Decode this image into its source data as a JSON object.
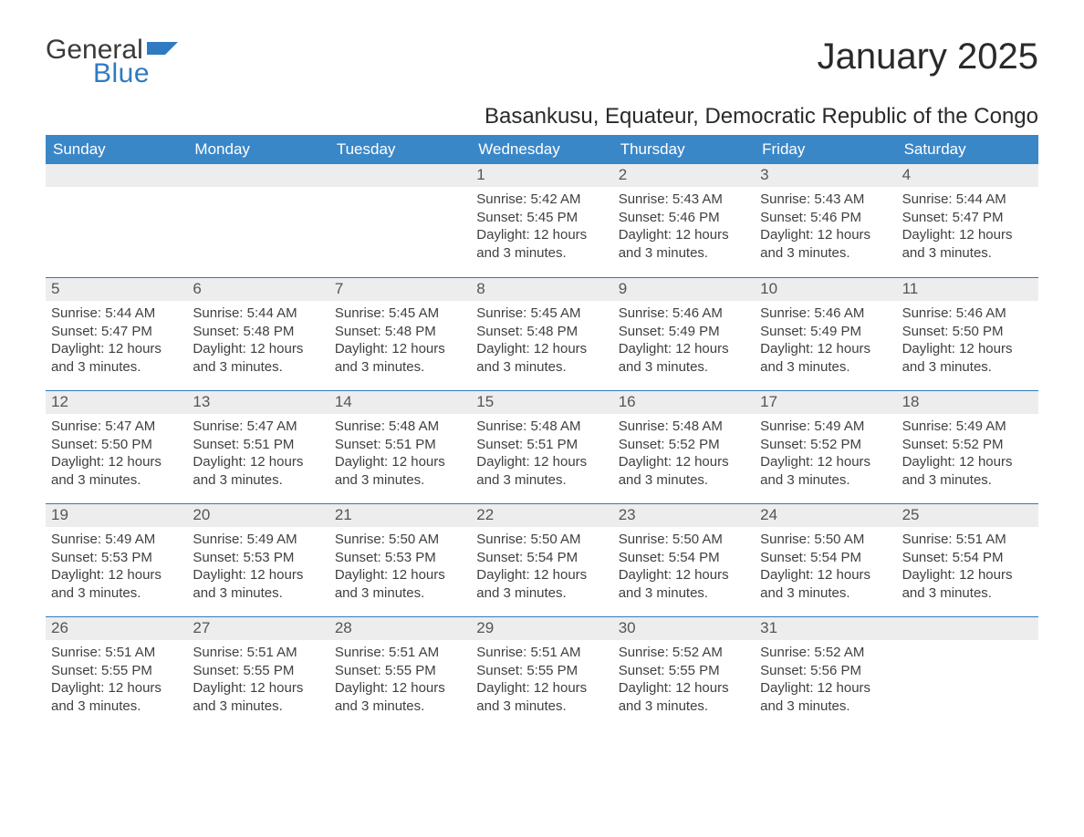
{
  "brand": {
    "word1": "General",
    "word2": "Blue",
    "color_text": "#3a3a3a",
    "color_accent": "#2f7ac0"
  },
  "title": "January 2025",
  "subtitle": "Basankusu, Equateur, Democratic Republic of the Congo",
  "colors": {
    "header_bg": "#3a87c8",
    "header_text": "#ffffff",
    "divider": "#2f7ac0",
    "daynum_bg": "#ededed",
    "daynum_text": "#555555",
    "body_text": "#404040",
    "page_bg": "#ffffff"
  },
  "typography": {
    "title_fontsize": 40,
    "subtitle_fontsize": 24,
    "dow_fontsize": 17,
    "daynum_fontsize": 17,
    "body_fontsize": 15,
    "font_family": "Arial"
  },
  "calendar": {
    "type": "month-grid",
    "columns": 7,
    "rows": 5,
    "day_headers": [
      "Sunday",
      "Monday",
      "Tuesday",
      "Wednesday",
      "Thursday",
      "Friday",
      "Saturday"
    ],
    "sunrise_prefix": "Sunrise: ",
    "sunset_prefix": "Sunset: ",
    "daylight_prefix": "Daylight: ",
    "daylight_value": "12 hours and 3 minutes.",
    "weeks": [
      [
        {
          "day": null
        },
        {
          "day": null
        },
        {
          "day": null
        },
        {
          "day": 1,
          "sunrise": "5:42 AM",
          "sunset": "5:45 PM"
        },
        {
          "day": 2,
          "sunrise": "5:43 AM",
          "sunset": "5:46 PM"
        },
        {
          "day": 3,
          "sunrise": "5:43 AM",
          "sunset": "5:46 PM"
        },
        {
          "day": 4,
          "sunrise": "5:44 AM",
          "sunset": "5:47 PM"
        }
      ],
      [
        {
          "day": 5,
          "sunrise": "5:44 AM",
          "sunset": "5:47 PM"
        },
        {
          "day": 6,
          "sunrise": "5:44 AM",
          "sunset": "5:48 PM"
        },
        {
          "day": 7,
          "sunrise": "5:45 AM",
          "sunset": "5:48 PM"
        },
        {
          "day": 8,
          "sunrise": "5:45 AM",
          "sunset": "5:48 PM"
        },
        {
          "day": 9,
          "sunrise": "5:46 AM",
          "sunset": "5:49 PM"
        },
        {
          "day": 10,
          "sunrise": "5:46 AM",
          "sunset": "5:49 PM"
        },
        {
          "day": 11,
          "sunrise": "5:46 AM",
          "sunset": "5:50 PM"
        }
      ],
      [
        {
          "day": 12,
          "sunrise": "5:47 AM",
          "sunset": "5:50 PM"
        },
        {
          "day": 13,
          "sunrise": "5:47 AM",
          "sunset": "5:51 PM"
        },
        {
          "day": 14,
          "sunrise": "5:48 AM",
          "sunset": "5:51 PM"
        },
        {
          "day": 15,
          "sunrise": "5:48 AM",
          "sunset": "5:51 PM"
        },
        {
          "day": 16,
          "sunrise": "5:48 AM",
          "sunset": "5:52 PM"
        },
        {
          "day": 17,
          "sunrise": "5:49 AM",
          "sunset": "5:52 PM"
        },
        {
          "day": 18,
          "sunrise": "5:49 AM",
          "sunset": "5:52 PM"
        }
      ],
      [
        {
          "day": 19,
          "sunrise": "5:49 AM",
          "sunset": "5:53 PM"
        },
        {
          "day": 20,
          "sunrise": "5:49 AM",
          "sunset": "5:53 PM"
        },
        {
          "day": 21,
          "sunrise": "5:50 AM",
          "sunset": "5:53 PM"
        },
        {
          "day": 22,
          "sunrise": "5:50 AM",
          "sunset": "5:54 PM"
        },
        {
          "day": 23,
          "sunrise": "5:50 AM",
          "sunset": "5:54 PM"
        },
        {
          "day": 24,
          "sunrise": "5:50 AM",
          "sunset": "5:54 PM"
        },
        {
          "day": 25,
          "sunrise": "5:51 AM",
          "sunset": "5:54 PM"
        }
      ],
      [
        {
          "day": 26,
          "sunrise": "5:51 AM",
          "sunset": "5:55 PM"
        },
        {
          "day": 27,
          "sunrise": "5:51 AM",
          "sunset": "5:55 PM"
        },
        {
          "day": 28,
          "sunrise": "5:51 AM",
          "sunset": "5:55 PM"
        },
        {
          "day": 29,
          "sunrise": "5:51 AM",
          "sunset": "5:55 PM"
        },
        {
          "day": 30,
          "sunrise": "5:52 AM",
          "sunset": "5:55 PM"
        },
        {
          "day": 31,
          "sunrise": "5:52 AM",
          "sunset": "5:56 PM"
        },
        {
          "day": null
        }
      ]
    ]
  }
}
